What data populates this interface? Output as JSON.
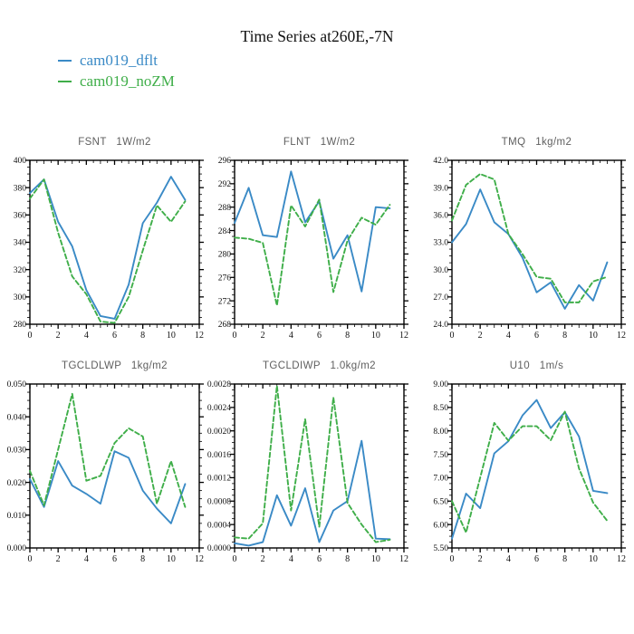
{
  "title": "Time Series at260E,-7N",
  "legend": {
    "position": "top-left",
    "items": [
      {
        "label": "cam019_dflt",
        "color": "#3a8ac6",
        "style": "solid"
      },
      {
        "label": "cam019_noZM",
        "color": "#3fae49",
        "style": "dashed"
      }
    ]
  },
  "colors": {
    "axis": "#000000",
    "subplot_title": "#5f5f5f",
    "background": "#ffffff"
  },
  "chart_data": [
    {
      "type": "line",
      "title": "FSNT   1W/m2",
      "xlabel": "",
      "ylabel": "",
      "x": [
        0,
        1,
        2,
        3,
        4,
        5,
        6,
        7,
        8,
        9,
        10,
        11
      ],
      "xlim": [
        0,
        12
      ],
      "xtick_step": 2,
      "ylim": [
        280,
        400
      ],
      "ytick_step": 20,
      "y_decimals": 0,
      "grid": false,
      "series": [
        {
          "name": "cam019_dflt",
          "color": "#3a8ac6",
          "dash": false,
          "values": [
            376,
            386,
            355,
            337,
            305,
            286,
            284,
            309,
            354,
            369,
            388,
            371
          ]
        },
        {
          "name": "cam019_noZM",
          "color": "#3fae49",
          "dash": true,
          "values": [
            372,
            386,
            347,
            315,
            302,
            282,
            281,
            300,
            334,
            367,
            355,
            370
          ]
        }
      ]
    },
    {
      "type": "line",
      "title": "FLNT   1W/m2",
      "xlabel": "",
      "ylabel": "",
      "x": [
        0,
        1,
        2,
        3,
        4,
        5,
        6,
        7,
        8,
        9,
        10,
        11
      ],
      "xlim": [
        0,
        12
      ],
      "xtick_step": 2,
      "ylim": [
        268,
        296
      ],
      "ytick_step": 4,
      "y_decimals": 0,
      "grid": false,
      "series": [
        {
          "name": "cam019_dflt",
          "color": "#3a8ac6",
          "dash": false,
          "values": [
            285.3,
            291.3,
            283.2,
            282.9,
            294.1,
            285.4,
            289.0,
            279.2,
            283.2,
            273.6,
            288.0,
            287.8
          ]
        },
        {
          "name": "cam019_noZM",
          "color": "#3fae49",
          "dash": true,
          "values": [
            282.8,
            282.6,
            281.9,
            271.2,
            288.3,
            284.7,
            289.3,
            273.5,
            282.3,
            286.2,
            285.0,
            288.4
          ]
        }
      ]
    },
    {
      "type": "line",
      "title": "TMQ   1kg/m2",
      "xlabel": "",
      "ylabel": "",
      "x": [
        0,
        1,
        2,
        3,
        4,
        5,
        6,
        7,
        8,
        9,
        10,
        11
      ],
      "xlim": [
        0,
        12
      ],
      "xtick_step": 2,
      "ylim": [
        24.0,
        42.0
      ],
      "ytick_step": 3.0,
      "y_decimals": 1,
      "grid": false,
      "series": [
        {
          "name": "cam019_dflt",
          "color": "#3a8ac6",
          "dash": false,
          "values": [
            33.0,
            35.0,
            38.8,
            35.2,
            33.9,
            31.3,
            27.5,
            28.6,
            25.7,
            28.3,
            26.6,
            30.8
          ]
        },
        {
          "name": "cam019_noZM",
          "color": "#3fae49",
          "dash": true,
          "values": [
            35.4,
            39.3,
            40.5,
            39.9,
            33.9,
            31.7,
            29.2,
            29.0,
            26.4,
            26.4,
            28.7,
            29.2
          ]
        }
      ]
    },
    {
      "type": "line",
      "title": "TGCLDLWP   1kg/m2",
      "xlabel": "",
      "ylabel": "",
      "x": [
        0,
        1,
        2,
        3,
        4,
        5,
        6,
        7,
        8,
        9,
        10,
        11
      ],
      "xlim": [
        0,
        12
      ],
      "xtick_step": 2,
      "ylim": [
        0.0,
        0.05
      ],
      "ytick_step": 0.01,
      "y_decimals": 3,
      "grid": false,
      "series": [
        {
          "name": "cam019_dflt",
          "color": "#3a8ac6",
          "dash": false,
          "values": [
            0.021,
            0.0125,
            0.0265,
            0.019,
            0.0165,
            0.0135,
            0.0295,
            0.0275,
            0.0175,
            0.012,
            0.0075,
            0.0195
          ]
        },
        {
          "name": "cam019_noZM",
          "color": "#3fae49",
          "dash": true,
          "values": [
            0.0235,
            0.013,
            0.03,
            0.047,
            0.0205,
            0.022,
            0.032,
            0.0365,
            0.034,
            0.0135,
            0.0265,
            0.0125
          ]
        }
      ]
    },
    {
      "type": "line",
      "title": "TGCLDIWP   1.0kg/m2",
      "xlabel": "",
      "ylabel": "",
      "x": [
        0,
        1,
        2,
        3,
        4,
        5,
        6,
        7,
        8,
        9,
        10,
        11
      ],
      "xlim": [
        0,
        12
      ],
      "xtick_step": 2,
      "ylim": [
        0.0,
        0.0028
      ],
      "ytick_step": 0.0004,
      "y_decimals": 4,
      "grid": false,
      "series": [
        {
          "name": "cam019_dflt",
          "color": "#3a8ac6",
          "dash": false,
          "values": [
            8e-05,
            4e-05,
            0.0001,
            0.0009,
            0.00038,
            0.00102,
            0.0001,
            0.00064,
            0.0008,
            0.00183,
            0.00016,
            0.00015
          ]
        },
        {
          "name": "cam019_noZM",
          "color": "#3fae49",
          "dash": true,
          "values": [
            0.00018,
            0.00016,
            0.00042,
            0.00277,
            0.00064,
            0.0022,
            0.00036,
            0.00257,
            0.00077,
            0.0004,
            0.0001,
            0.00014
          ]
        }
      ]
    },
    {
      "type": "line",
      "title": "U10   1m/s",
      "xlabel": "",
      "ylabel": "",
      "x": [
        0,
        1,
        2,
        3,
        4,
        5,
        6,
        7,
        8,
        9,
        10,
        11
      ],
      "xlim": [
        0,
        12
      ],
      "xtick_step": 2,
      "ylim": [
        5.5,
        9.0
      ],
      "ytick_step": 0.5,
      "y_decimals": 2,
      "grid": false,
      "series": [
        {
          "name": "cam019_dflt",
          "color": "#3a8ac6",
          "dash": false,
          "values": [
            5.7,
            6.66,
            6.35,
            7.52,
            7.78,
            8.33,
            8.66,
            8.06,
            8.4,
            7.88,
            6.72,
            6.67
          ]
        },
        {
          "name": "cam019_noZM",
          "color": "#3fae49",
          "dash": true,
          "values": [
            6.5,
            5.83,
            7.0,
            8.17,
            7.79,
            8.1,
            8.1,
            7.8,
            8.41,
            7.2,
            6.47,
            6.08
          ]
        }
      ]
    }
  ]
}
